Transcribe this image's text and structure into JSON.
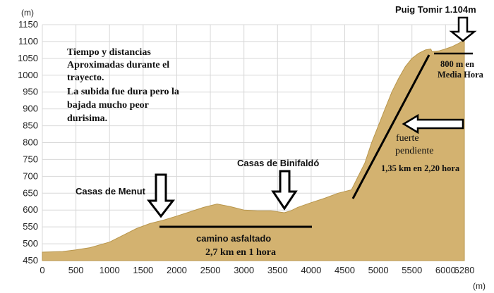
{
  "chart_data": {
    "type": "area",
    "y_unit": "(m)",
    "x_unit": "(m)",
    "xlim": [
      0,
      6280
    ],
    "ylim": [
      450,
      1150
    ],
    "x_ticks": [
      "0",
      "500",
      "1000",
      "1500",
      "2000",
      "2500",
      "3000",
      "3500",
      "4000",
      "4500",
      "5000",
      "5500",
      "6000",
      "6280"
    ],
    "y_ticks": [
      "450",
      "500",
      "550",
      "600",
      "650",
      "700",
      "750",
      "800",
      "850",
      "900",
      "950",
      "1000",
      "1050",
      "1100",
      "1150"
    ],
    "grid": true,
    "fill_color": "#d3b270",
    "profile": {
      "x": [
        0,
        300,
        500,
        700,
        1000,
        1200,
        1400,
        1600,
        1800,
        2000,
        2200,
        2400,
        2600,
        2800,
        3000,
        3200,
        3400,
        3600,
        3700,
        3800,
        4000,
        4200,
        4400,
        4600,
        4700,
        4800,
        4900,
        5000,
        5100,
        5200,
        5300,
        5400,
        5500,
        5600,
        5700,
        5780,
        5800,
        5900,
        6000,
        6100,
        6200,
        6280
      ],
      "y": [
        475,
        477,
        482,
        488,
        505,
        525,
        545,
        560,
        570,
        582,
        595,
        608,
        618,
        610,
        600,
        598,
        598,
        592,
        598,
        608,
        622,
        635,
        650,
        660,
        700,
        740,
        800,
        850,
        900,
        950,
        990,
        1025,
        1050,
        1065,
        1075,
        1078,
        1070,
        1072,
        1078,
        1085,
        1095,
        1104
      ]
    },
    "annotations": {
      "summit_label": "Puig Tomir  1.104m",
      "info_lines": [
        "Tiempo y distancias",
        "Aproximadas durante el",
        "trayecto.",
        "La subida fue dura pero la",
        "bajada mucho peor",
        "durisima."
      ],
      "menut_label": "Casas de Menut",
      "binifaldo_label": "Casas de Binifaldó",
      "road_label": "camino asfaltado",
      "road_time": "2,7 km en 1 hora",
      "slope_label_1": "fuerte",
      "slope_label_2": "pendiente",
      "slope_time": "1,35 km en 2,20 hora",
      "top_dist_1": "800 m en",
      "top_dist_2": "Media Hora"
    }
  }
}
